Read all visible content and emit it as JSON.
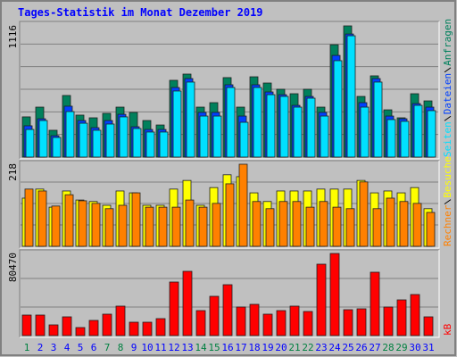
{
  "chart_data": {
    "type": "bar",
    "title": "Tages-Statistik im Monat Dezember 2019",
    "categories": [
      "1",
      "2",
      "3",
      "4",
      "5",
      "6",
      "7",
      "8",
      "9",
      "10",
      "11",
      "12",
      "13",
      "14",
      "15",
      "16",
      "17",
      "18",
      "19",
      "20",
      "21",
      "22",
      "23",
      "24",
      "25",
      "26",
      "27",
      "28",
      "29",
      "30",
      "31"
    ],
    "category_colors": [
      "#008040",
      "#0000ff",
      "#0000ff",
      "#0000ff",
      "#0000ff",
      "#0000ff",
      "#008040",
      "#008040",
      "#0000ff",
      "#0000ff",
      "#0000ff",
      "#0000ff",
      "#0000ff",
      "#008040",
      "#008040",
      "#0000ff",
      "#0000ff",
      "#0000ff",
      "#0000ff",
      "#0000ff",
      "#008040",
      "#008040",
      "#0000ff",
      "#0000ff",
      "#0000ff",
      "#0000ff",
      "#0000ff",
      "#008040",
      "#008040",
      "#0000ff",
      "#0000ff"
    ],
    "panels": [
      {
        "ylim": [
          0,
          1116
        ],
        "yticks": [
          1116
        ],
        "grid_divisions": 6,
        "series": [
          {
            "name": "Anfragen",
            "color": "#00805c",
            "values": [
              342,
              425,
              228,
              524,
              357,
              334,
              372,
              425,
              380,
              311,
              273,
              653,
              706,
              425,
              463,
              676,
              425,
              683,
              630,
              577,
              539,
              577,
              425,
              956,
              1116,
              516,
              691,
              402,
              334,
              539,
              478
            ]
          },
          {
            "name": "Dateien",
            "color": "#0040ff",
            "values": [
              266,
              326,
              182,
              433,
              311,
              250,
              311,
              364,
              258,
              235,
              235,
              592,
              668,
              380,
              380,
              615,
              349,
              615,
              554,
              531,
              440,
              516,
              380,
              865,
              1047,
              463,
              668,
              349,
              326,
              455,
              425
            ]
          },
          {
            "name": "Seiten",
            "color": "#00e0ff",
            "values": [
              235,
              311,
              167,
              387,
              288,
              228,
              281,
              342,
              243,
              213,
              213,
              562,
              638,
              349,
              349,
              592,
              296,
              592,
              531,
              516,
              425,
              501,
              349,
              820,
              1032,
              425,
              638,
              319,
              304,
              440,
              395
            ]
          }
        ]
      },
      {
        "ylim": [
          0,
          218
        ],
        "yticks": [
          218
        ],
        "grid_divisions": 4,
        "series": [
          {
            "name": "Besuche",
            "color": "#ffff00",
            "values": [
              128,
              152,
              104,
              147,
              123,
              119,
              109,
              147,
              142,
              109,
              109,
              152,
              175,
              109,
              156,
              190,
              185,
              142,
              119,
              147,
              147,
              147,
              152,
              152,
              152,
              175,
              142,
              147,
              142,
              156,
              100
            ]
          },
          {
            "name": "Rechner",
            "color": "#ff8000",
            "values": [
              152,
              147,
              107,
              137,
              121,
              114,
              100,
              109,
              142,
              104,
              104,
              104,
              123,
              104,
              114,
              166,
              218,
              119,
              100,
              119,
              119,
              104,
              119,
              104,
              100,
              171,
              100,
              128,
              119,
              114,
              90
            ]
          }
        ]
      },
      {
        "ylim": [
          0,
          80470
        ],
        "yticks": [
          80470
        ],
        "grid_divisions": 3,
        "series": [
          {
            "name": "kB",
            "color": "#ff0000",
            "values": [
              20118,
              20118,
              10496,
              18369,
              7872,
              14870,
              20993,
              28865,
              13120,
              13120,
              16619,
              52482,
              62978,
              24492,
              38487,
              49858,
              27990,
              30615,
              20993,
              24492,
              28865,
              23617,
              69976,
              80470,
              25366,
              26241,
              62104,
              27990,
              34988,
              40236,
              18369
            ]
          }
        ]
      }
    ]
  }
}
